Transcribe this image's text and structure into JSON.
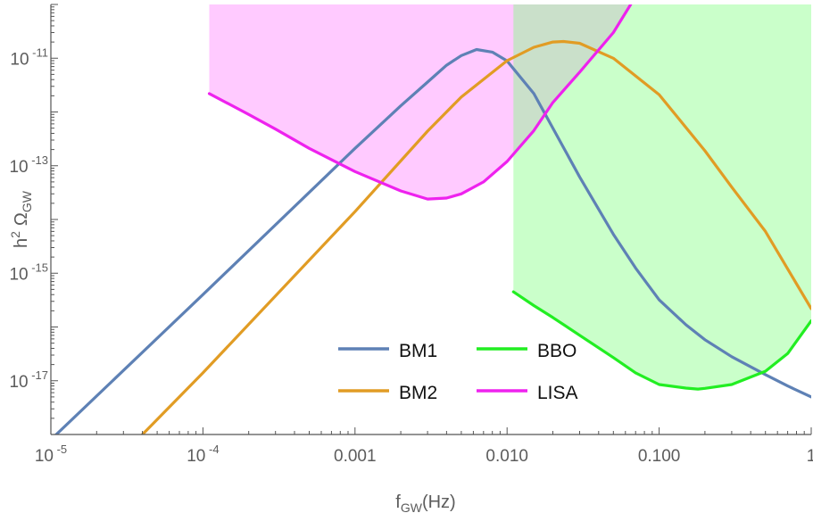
{
  "chart_data": {
    "type": "line",
    "title": "",
    "xlabel": {
      "main": "f",
      "sub": "GW",
      "unit": "(Hz)"
    },
    "ylabel": {
      "main": "h",
      "sup": "2",
      "omega": "Ω",
      "sub": "GW"
    },
    "x_scale": "log",
    "y_scale": "log",
    "xlim": [
      1e-05,
      1.0
    ],
    "ylim": [
      1e-18,
      1e-10
    ],
    "grid": false,
    "x_ticks": [
      {
        "value": 1e-05,
        "label": "10",
        "sup": "-5"
      },
      {
        "value": 0.0001,
        "label": "10",
        "sup": "-4"
      },
      {
        "value": 0.001,
        "label": "0.001",
        "sup": ""
      },
      {
        "value": 0.01,
        "label": "0.010",
        "sup": ""
      },
      {
        "value": 0.1,
        "label": "0.100",
        "sup": ""
      },
      {
        "value": 1.0,
        "label": "1",
        "sup": ""
      }
    ],
    "y_ticks": [
      {
        "value": 1e-11,
        "label": "10",
        "sup": "-11"
      },
      {
        "value": 1e-13,
        "label": "10",
        "sup": "-13"
      },
      {
        "value": 1e-15,
        "label": "10",
        "sup": "-15"
      },
      {
        "value": 1e-17,
        "label": "10",
        "sup": "-17"
      }
    ],
    "legend": {
      "placement": "lower-center"
    },
    "regions": [
      {
        "name": "LISA",
        "fill": "#ff80ff",
        "opacity": 0.42,
        "x_from": 0.00011,
        "top": 1e-09
      },
      {
        "name": "BBO",
        "fill": "#80ff80",
        "opacity": 0.42,
        "x_from": 0.011,
        "top": 1e-09
      }
    ],
    "series": [
      {
        "name": "BM1",
        "color": "#5e81b5",
        "dashed": false,
        "x": [
          1e-05,
          0.0001,
          0.001,
          0.002,
          0.003,
          0.004,
          0.005,
          0.0063,
          0.008,
          0.01,
          0.015,
          0.02,
          0.03,
          0.05,
          0.07,
          0.1,
          0.15,
          0.2,
          0.3,
          0.5,
          0.7,
          1.0
        ],
        "y": [
          8e-19,
          4e-16,
          2.1e-13,
          1.3e-12,
          3.6e-12,
          7.4e-12,
          1.12e-11,
          1.45e-11,
          1.3e-11,
          8.9e-12,
          2.2e-12,
          5e-13,
          6.2e-14,
          5.3e-15,
          1.25e-15,
          3.2e-16,
          1.1e-16,
          5.8e-17,
          2.8e-17,
          1.3e-17,
          8e-18,
          5e-18
        ]
      },
      {
        "name": "BM2",
        "color": "#e19c24",
        "dashed": false,
        "x": [
          4e-05,
          0.0001,
          0.001,
          0.003,
          0.005,
          0.01,
          0.015,
          0.02,
          0.0235,
          0.03,
          0.05,
          0.1,
          0.2,
          0.3,
          0.5,
          1.0
        ],
        "y": [
          1e-18,
          1.4e-17,
          1.4e-14,
          4.4e-13,
          1.9e-12,
          9e-12,
          1.6e-11,
          2e-11,
          2.05e-11,
          1.9e-11,
          1e-11,
          2.1e-12,
          1.9e-13,
          4e-14,
          6e-15,
          2.2e-16
        ]
      },
      {
        "name": "BBO",
        "color": "#22ee22",
        "dashed": false,
        "x": [
          0.011,
          0.015,
          0.02,
          0.03,
          0.05,
          0.07,
          0.1,
          0.15,
          0.18,
          0.2,
          0.3,
          0.5,
          0.7,
          1.0
        ],
        "y": [
          4.5e-16,
          2.5e-16,
          1.5e-16,
          7e-17,
          2.7e-17,
          1.4e-17,
          8.5e-18,
          7.3e-18,
          7e-18,
          7.2e-18,
          8.5e-18,
          1.5e-17,
          3.2e-17,
          1.3e-16
        ]
      },
      {
        "name": "LISA",
        "color": "#ee22ee",
        "dashed": false,
        "x": [
          0.00011,
          0.0002,
          0.0003,
          0.0005,
          0.001,
          0.002,
          0.003,
          0.004,
          0.005,
          0.007,
          0.01,
          0.015,
          0.02,
          0.03,
          0.05,
          0.065
        ],
        "y": [
          2.2e-12,
          9e-13,
          4.8e-13,
          2.1e-13,
          7.8e-14,
          3.4e-14,
          2.4e-14,
          2.5e-14,
          3e-14,
          5e-14,
          1.2e-13,
          4.5e-13,
          1.5e-12,
          5.5e-12,
          3e-11,
          1e-10
        ]
      }
    ]
  }
}
